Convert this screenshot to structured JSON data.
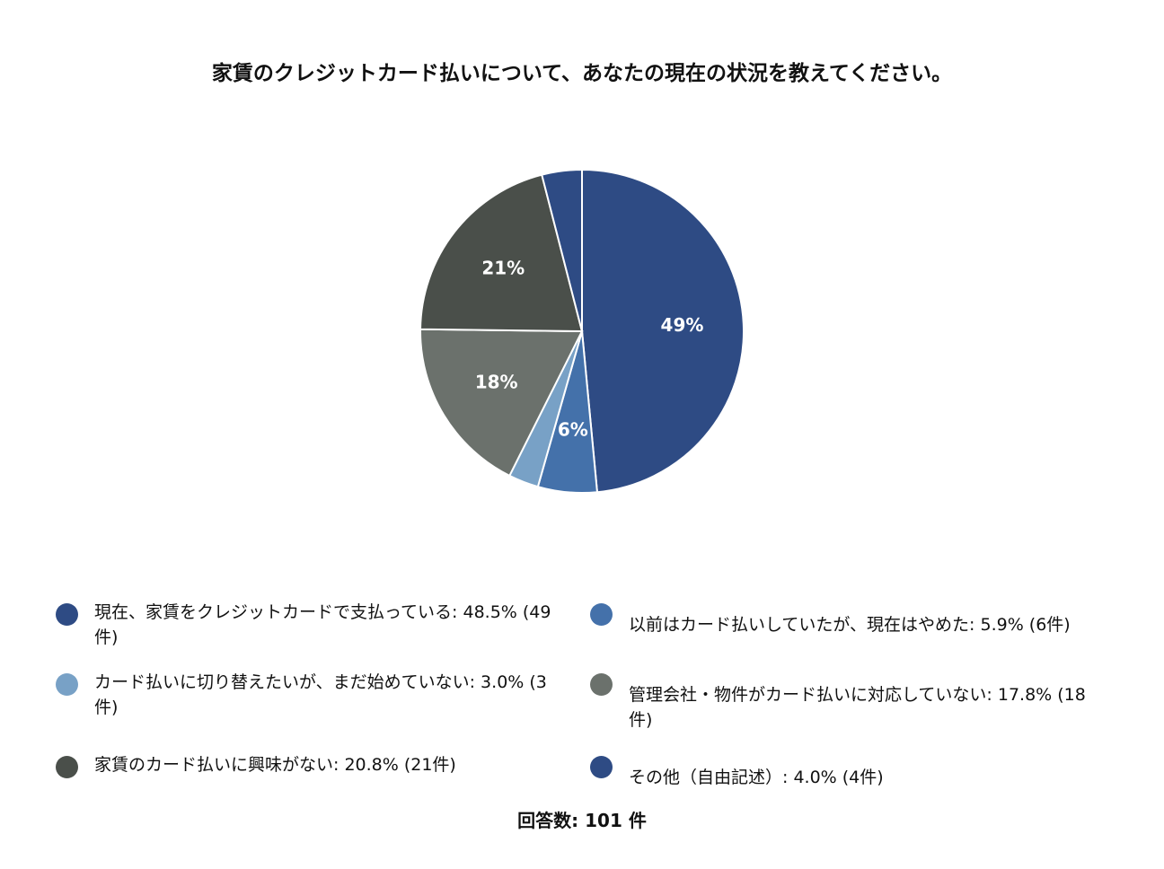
{
  "chart_data": {
    "type": "pie",
    "title": "家賃のクレジットカード払いについて、あなたの現在の状況を教えてください。",
    "categories": [
      "現在、家賃をクレジットカードで支払っている: 48.5% (49件)",
      "以前はカード払いしていたが、現在はやめた: 5.9% (6件)",
      "カード払いに切り替えたいが、まだ始めていない: 3.0% (3件)",
      "管理会社・物件がカード払いに対応していない: 17.8% (18件)",
      "家賃のカード払いに興味がない: 20.8% (21件)",
      "その他（自由記述）: 4.0% (4件)"
    ],
    "values": [
      48.5,
      5.9,
      3.0,
      17.8,
      20.8,
      4.0
    ],
    "value_labels": [
      "49%",
      "6%",
      null,
      "18%",
      "21%",
      null
    ],
    "colors": [
      "#2e4b84",
      "#4471aa",
      "#78a1c6",
      "#6b716c",
      "#4a4f4a",
      "#2e4b84"
    ],
    "caption": "回答数: 101 件"
  }
}
